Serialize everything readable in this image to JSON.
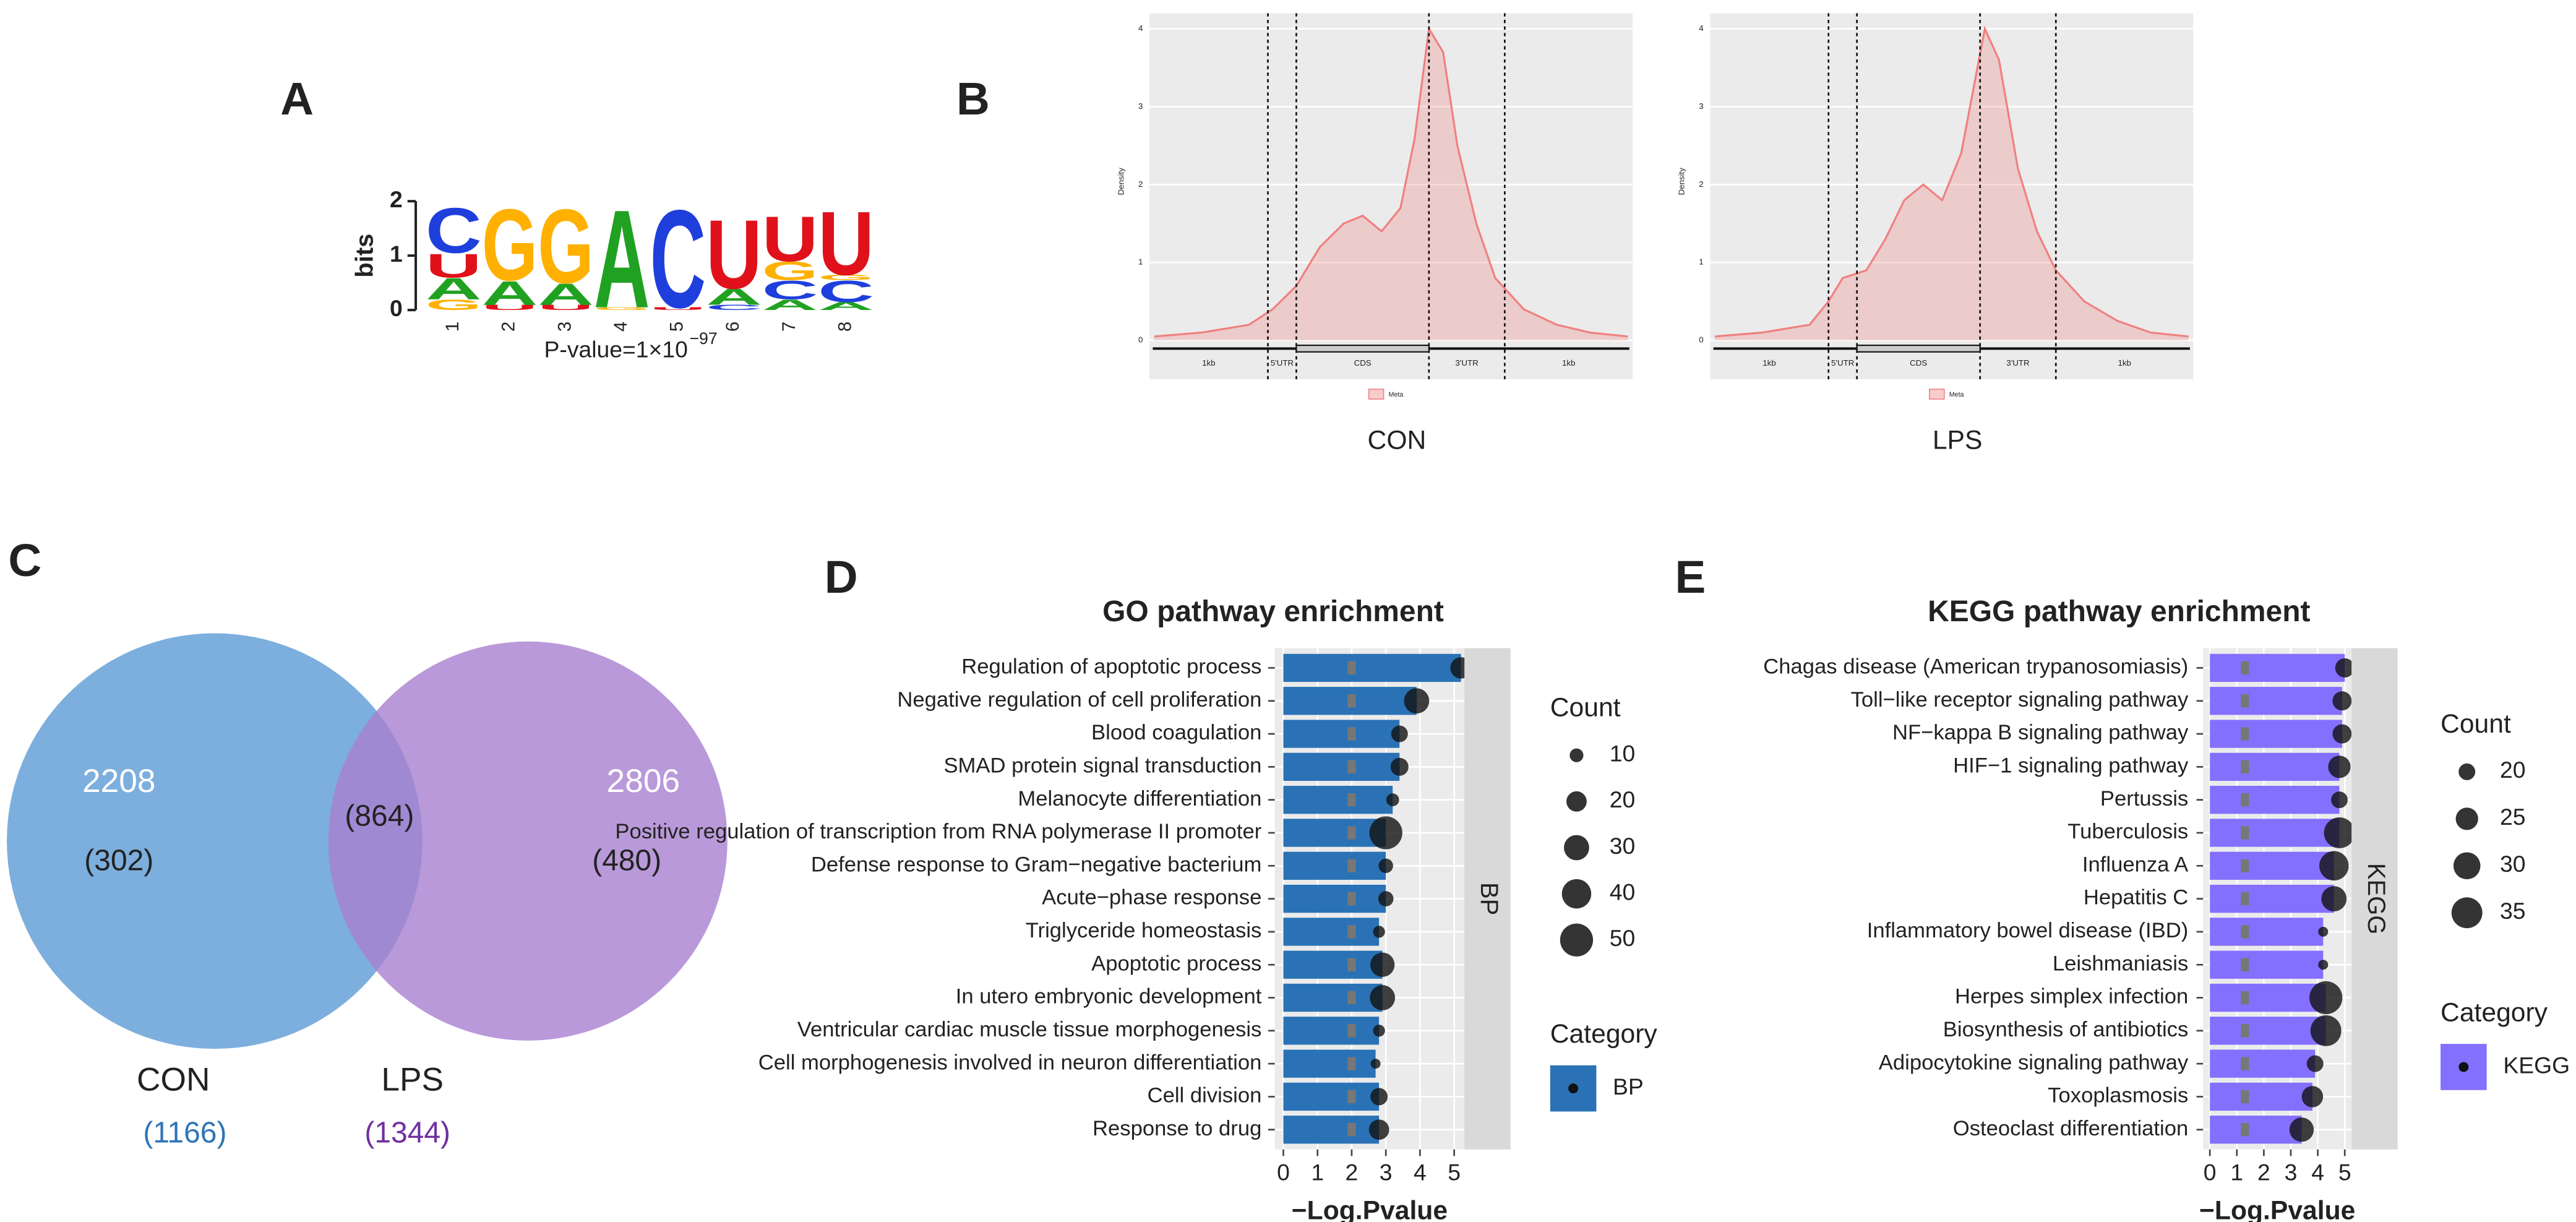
{
  "chart_data": [
    {
      "type": "logo",
      "panel": "A",
      "ylabel": "bits",
      "ylim": [
        0,
        2
      ],
      "yticks": [
        0,
        1,
        2
      ],
      "xticks": [
        1,
        2,
        3,
        4,
        5,
        6,
        7,
        8
      ],
      "caption": "P-value=1×10",
      "exponent": "−97",
      "colors": {
        "A": "#21a121",
        "C": "#1f3fdc",
        "G": "#ffb000",
        "U": "#e0111a"
      },
      "positions": [
        {
          "letters": [
            "G",
            "A",
            "U",
            "C"
          ],
          "heights": [
            0.2,
            0.4,
            0.45,
            0.85
          ]
        },
        {
          "letters": [
            "U",
            "A",
            "G"
          ],
          "heights": [
            0.1,
            0.45,
            1.35
          ]
        },
        {
          "letters": [
            "U",
            "A",
            "G"
          ],
          "heights": [
            0.1,
            0.4,
            1.4
          ]
        },
        {
          "letters": [
            "G",
            "A"
          ],
          "heights": [
            0.05,
            1.85
          ]
        },
        {
          "letters": [
            "U",
            "C"
          ],
          "heights": [
            0.05,
            1.85
          ]
        },
        {
          "letters": [
            "C",
            "A",
            "U"
          ],
          "heights": [
            0.1,
            0.3,
            1.3
          ]
        },
        {
          "letters": [
            "A",
            "C",
            "G",
            "U"
          ],
          "heights": [
            0.2,
            0.35,
            0.35,
            0.85
          ]
        },
        {
          "letters": [
            "A",
            "C",
            "G",
            "U"
          ],
          "heights": [
            0.15,
            0.4,
            0.1,
            1.2
          ]
        }
      ]
    },
    {
      "type": "density",
      "panel": "B",
      "caption": "CON",
      "ylabel": "Density",
      "legend": "Meta",
      "color": "#f08080",
      "x": [
        0,
        10,
        20,
        25,
        30,
        35,
        40,
        44,
        48,
        52,
        55,
        58,
        61,
        64,
        68,
        72,
        78,
        85,
        92,
        100
      ],
      "values": [
        0.05,
        0.1,
        0.2,
        0.4,
        0.7,
        1.2,
        1.5,
        1.6,
        1.4,
        1.7,
        2.6,
        4.0,
        3.7,
        2.5,
        1.5,
        0.8,
        0.4,
        0.2,
        0.1,
        0.05
      ],
      "xlim": [
        -1,
        101
      ],
      "ylim": [
        -0.5,
        4.2
      ],
      "yticks": [
        0,
        1,
        2,
        3,
        4
      ],
      "boundaries": [
        24,
        30,
        58,
        74
      ],
      "regions": [
        "1kb",
        "5'UTR",
        "CDS",
        "3'UTR",
        "1kb"
      ]
    },
    {
      "type": "density",
      "caption": "LPS",
      "ylabel": "Density",
      "legend": "Meta",
      "color": "#f08080",
      "x": [
        0,
        10,
        20,
        24,
        27,
        32,
        36,
        40,
        44,
        48,
        52,
        57,
        60,
        64,
        68,
        72,
        78,
        85,
        92,
        100
      ],
      "values": [
        0.05,
        0.1,
        0.2,
        0.5,
        0.8,
        0.9,
        1.3,
        1.8,
        2.0,
        1.8,
        2.4,
        4.0,
        3.6,
        2.2,
        1.4,
        0.9,
        0.5,
        0.25,
        0.1,
        0.05
      ],
      "xlim": [
        -1,
        101
      ],
      "ylim": [
        -0.5,
        4.2
      ],
      "yticks": [
        0,
        1,
        2,
        3,
        4
      ],
      "boundaries": [
        24,
        30,
        56,
        72
      ],
      "regions": [
        "1kb",
        "5'UTR",
        "CDS",
        "3'UTR",
        "1kb"
      ]
    },
    {
      "type": "venn",
      "panel": "C",
      "sets": [
        {
          "name": "CON",
          "total": "(1166)",
          "unique": 2208,
          "unique_sub": "(302)",
          "color": "#5b9bd5",
          "label_color": "#2e75b6"
        },
        {
          "name": "LPS",
          "total": "(1344)",
          "unique": 2806,
          "unique_sub": "(480)",
          "color": "#a77fcf",
          "label_color": "#7030a0"
        }
      ],
      "overlap": "(864)"
    },
    {
      "type": "bar",
      "panel": "D",
      "title": "GO pathway enrichment",
      "xlabel": "−Log.Pvalue",
      "strip": "BP",
      "color": "#2a72b5",
      "categories": [
        "Regulation of apoptotic process",
        "Negative regulation of cell proliferation",
        "Blood coagulation",
        "SMAD protein signal transduction",
        "Melanocyte differentiation",
        "Positive regulation of transcription from RNA polymerase II promoter",
        "Defense response to Gram−negative bacterium",
        "Acute−phase response",
        "Triglyceride homeostasis",
        "Apoptotic process",
        "In utero embryonic development",
        "Ventricular cardiac muscle tissue morphogenesis",
        "Cell morphogenesis involved in neuron differentiation",
        "Cell division",
        "Response to drug"
      ],
      "values": [
        5.2,
        3.9,
        3.4,
        3.4,
        3.2,
        3.0,
        3.0,
        3.0,
        2.8,
        2.9,
        2.9,
        2.8,
        2.7,
        2.8,
        2.8
      ],
      "counts": [
        22,
        30,
        14,
        16,
        9,
        50,
        11,
        12,
        8,
        28,
        30,
        8,
        6,
        15,
        20
      ],
      "xlim": [
        -0.25,
        5.3
      ],
      "xticks": [
        0,
        1,
        2,
        3,
        4,
        5
      ],
      "threshold": 2,
      "size_legend": {
        "title": "Count",
        "breaks": [
          10,
          20,
          30,
          40,
          50
        ]
      },
      "category_legend": {
        "title": "Category",
        "label": "BP"
      }
    },
    {
      "type": "bar",
      "panel": "E",
      "title": "KEGG pathway enrichment",
      "xlabel": "−Log.Pvalue",
      "strip": "KEGG",
      "color": "#8470ff",
      "categories": [
        "Chagas disease (American trypanosomiasis)",
        "Toll−like receptor signaling pathway",
        "NF−kappa B signaling pathway",
        "HIF−1 signaling pathway",
        "Pertussis",
        "Tuberculosis",
        "Influenza A",
        "Hepatitis C",
        "Inflammatory bowel disease (IBD)",
        "Leishmaniasis",
        "Herpes simplex infection",
        "Biosynthesis of antibiotics",
        "Adipocytokine signaling pathway",
        "Toxoplasmosis",
        "Osteoclast differentiation"
      ],
      "values": [
        5.0,
        4.9,
        4.9,
        4.8,
        4.8,
        4.8,
        4.6,
        4.6,
        4.2,
        4.2,
        4.3,
        4.3,
        3.9,
        3.8,
        3.4
      ],
      "counts": [
        22,
        22,
        22,
        25,
        20,
        35,
        33,
        28,
        16,
        16,
        38,
        35,
        20,
        24,
        27
      ],
      "xlim": [
        -0.25,
        5.25
      ],
      "xticks": [
        0,
        1,
        2,
        3,
        4,
        5
      ],
      "threshold": 1.3,
      "size_legend": {
        "title": "Count",
        "breaks": [
          20,
          25,
          30,
          35
        ]
      },
      "category_legend": {
        "title": "Category",
        "label": "KEGG"
      }
    }
  ]
}
